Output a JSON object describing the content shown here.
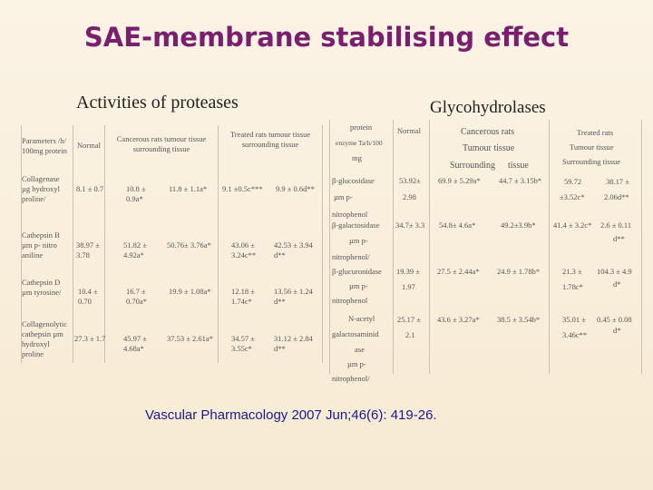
{
  "title": "SAE-membrane stabilising effect",
  "left_title": "Activities of proteases",
  "right_title": "Glycohydrolases",
  "left_table": {
    "headers": [
      "Parameters /h/ 100mg protein",
      "Normal",
      "Cancerous rats tumour tissue surrounding tissue",
      "Treated rats tumour tissue surrounding tissue"
    ],
    "rows": [
      {
        "label": "Collagenase µg hydroxyl proline/",
        "cells": [
          "8.1 ± 0.7",
          "10.8 ± 0.9a*",
          "11.8 ± 1.1a*",
          "9.1 ±0.5c***",
          "9.9 ± 0.6d**"
        ]
      },
      {
        "label": "Cathepsin B µm p- nitro aniline",
        "cells": [
          "38.97 ± 3.78",
          "51.82 ± 4.92a*",
          "50.76± 3.76a*",
          "43.06 ± 3.24c**",
          "42.53 ± 3.94 d**"
        ]
      },
      {
        "label": "Cathepsin D µm tyrosine/",
        "cells": [
          "10.4 ± 0.70",
          "16.7 ± 0.70a*",
          "19.9 ± 1.08a*",
          "12.18 ± 1.74c*",
          "13.56 ± 1.24 d**"
        ]
      },
      {
        "label": "Collagenolytic cathepsin µm hydroxyl proline",
        "cells": [
          "27.3 ± 1.7",
          "45.97 ± 4.68a*",
          "37.53 ± 2.61a*",
          "34.57 ± 3.55c*",
          "31.12 ± 2.84 d**"
        ]
      }
    ]
  },
  "right_table": {
    "headers": {
      "param": [
        "protein",
        "enzyme Ta/h/100",
        "mg"
      ],
      "normal": "Normal",
      "cancer": [
        "Cancerous rats",
        "Tumour tissue",
        "Surrounding",
        "tissue"
      ],
      "treated": [
        "Treated rats",
        "Tumour tissue",
        "Surrounding tissue"
      ]
    },
    "rows": [
      {
        "label": [
          "β-glucosidase",
          "µm p-",
          "nitrophenol"
        ],
        "normal": [
          "53.92±",
          "2.98"
        ],
        "c_tumour": "69.9 ± 5.29a*",
        "c_surr": "44.7 ± 3.15b*",
        "t_tumour": [
          "59.72",
          "±3.52c*"
        ],
        "t_surr": [
          "38.17 ±",
          "2.06d**"
        ]
      },
      {
        "label": [
          "β-galactosidase",
          "µm p-",
          "nitrophenol/"
        ],
        "normal": [
          "34.7± 3.3"
        ],
        "c_tumour": "54.8± 4.6a*",
        "c_surr": "49.2±3.9b*",
        "t_tumour": [
          "41.4 ± 3.2c*"
        ],
        "t_surr": [
          "2.6 ± 0.11",
          "d**"
        ]
      },
      {
        "label": [
          "β-glucuronidase",
          "µm p-",
          "nitrophenol"
        ],
        "normal": [
          "19.39 ±",
          "1.97"
        ],
        "c_tumour": "27.5 ± 2.44a*",
        "c_surr": "24.9 ± 1.78b*",
        "t_tumour": [
          "21.3 ±",
          "1.78c*"
        ],
        "t_surr": [
          "104.3 ± 4.9",
          "d*"
        ]
      },
      {
        "label": [
          "N-acetyl",
          "galactosaminid",
          "ase",
          "µm p-",
          "nitrophenol/"
        ],
        "normal": [
          "25.17 ±",
          "2.1"
        ],
        "c_tumour": "43.6 ± 3.27a*",
        "c_surr": "38.5 ± 3.54b*",
        "t_tumour": [
          "35.01 ±",
          "3.46c**"
        ],
        "t_surr": [
          "0.45 ± 0.08",
          "d*"
        ]
      }
    ]
  },
  "reference": "Vascular Pharmacology 2007 Jun;46(6): 419-26."
}
